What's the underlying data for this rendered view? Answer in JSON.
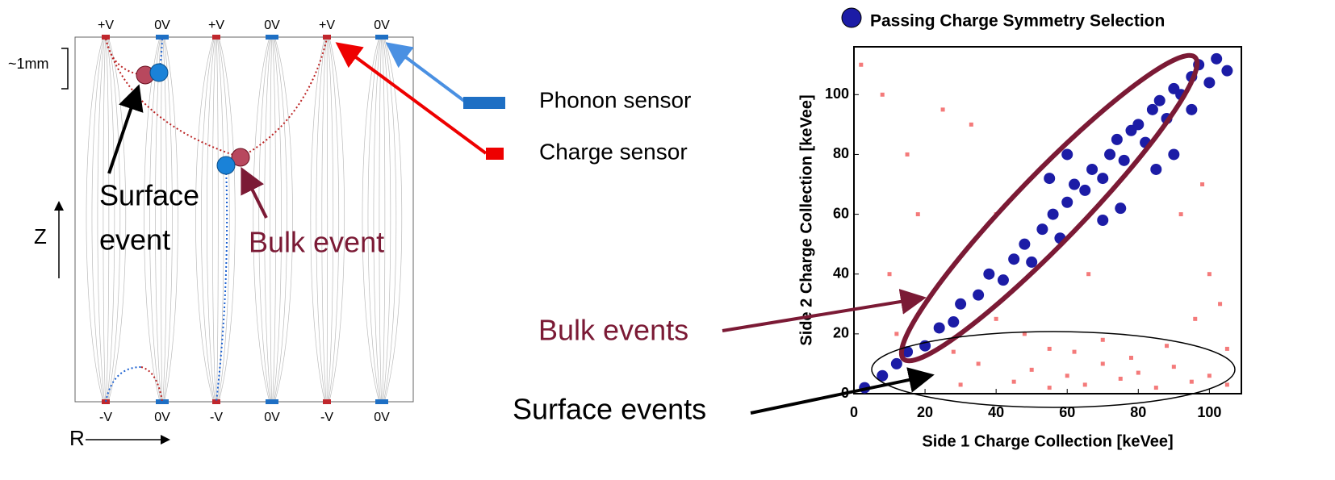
{
  "diagram": {
    "top_labels": [
      "+V",
      "0V",
      "+V",
      "0V",
      "+V",
      "0V"
    ],
    "bottom_labels": [
      "-V",
      "0V",
      "-V",
      "0V",
      "-V",
      "0V"
    ],
    "scale_label": "~1mm",
    "z_label": "Z",
    "r_label": "R",
    "surface_label": [
      "Surface",
      "event"
    ],
    "bulk_label": "Bulk event",
    "legend": [
      "Phonon sensor",
      "Charge sensor"
    ]
  },
  "chart_data": {
    "type": "scatter",
    "x_label": "Side 1 Charge Collection [keVee]",
    "y_label": "Side 2 Charge Collection [keVee]",
    "xlim": [
      0,
      109
    ],
    "ylim": [
      0,
      116
    ],
    "xticks": [
      0,
      20,
      40,
      60,
      80,
      100
    ],
    "yticks": [
      0,
      20,
      40,
      60,
      80,
      100
    ],
    "annotations": [
      "Bulk events",
      "Surface events"
    ],
    "series": [
      {
        "name": "Passing Charge Symmetry Selection",
        "color": "#1c1ca6",
        "x": [
          3,
          8,
          12,
          15,
          20,
          24,
          28,
          30,
          35,
          38,
          42,
          45,
          48,
          50,
          53,
          56,
          58,
          60,
          62,
          65,
          67,
          70,
          72,
          74,
          76,
          78,
          80,
          82,
          84,
          86,
          88,
          90,
          92,
          95,
          97,
          100,
          102,
          105,
          70,
          75,
          85,
          90,
          60,
          55,
          95
        ],
        "values": [
          2,
          6,
          10,
          14,
          16,
          22,
          24,
          30,
          33,
          40,
          38,
          45,
          50,
          44,
          55,
          60,
          52,
          64,
          70,
          68,
          75,
          72,
          80,
          85,
          78,
          88,
          90,
          84,
          95,
          98,
          92,
          102,
          100,
          106,
          110,
          104,
          112,
          108,
          58,
          62,
          75,
          80,
          80,
          72,
          95
        ]
      },
      {
        "color": "#f47a7a",
        "x": [
          2,
          10,
          15,
          20,
          25,
          30,
          35,
          40,
          45,
          50,
          55,
          60,
          65,
          70,
          75,
          80,
          85,
          90,
          95,
          100,
          105,
          48,
          55,
          62,
          70,
          78,
          88,
          96,
          100,
          103,
          8,
          18,
          92,
          98,
          40,
          66,
          33,
          105,
          12,
          28
        ],
        "values": [
          110,
          40,
          80,
          5,
          95,
          3,
          10,
          60,
          4,
          8,
          2,
          6,
          3,
          10,
          5,
          7,
          2,
          9,
          4,
          6,
          3,
          20,
          15,
          14,
          18,
          12,
          16,
          25,
          40,
          30,
          100,
          60,
          60,
          70,
          25,
          40,
          90,
          15,
          20,
          14
        ]
      }
    ]
  }
}
